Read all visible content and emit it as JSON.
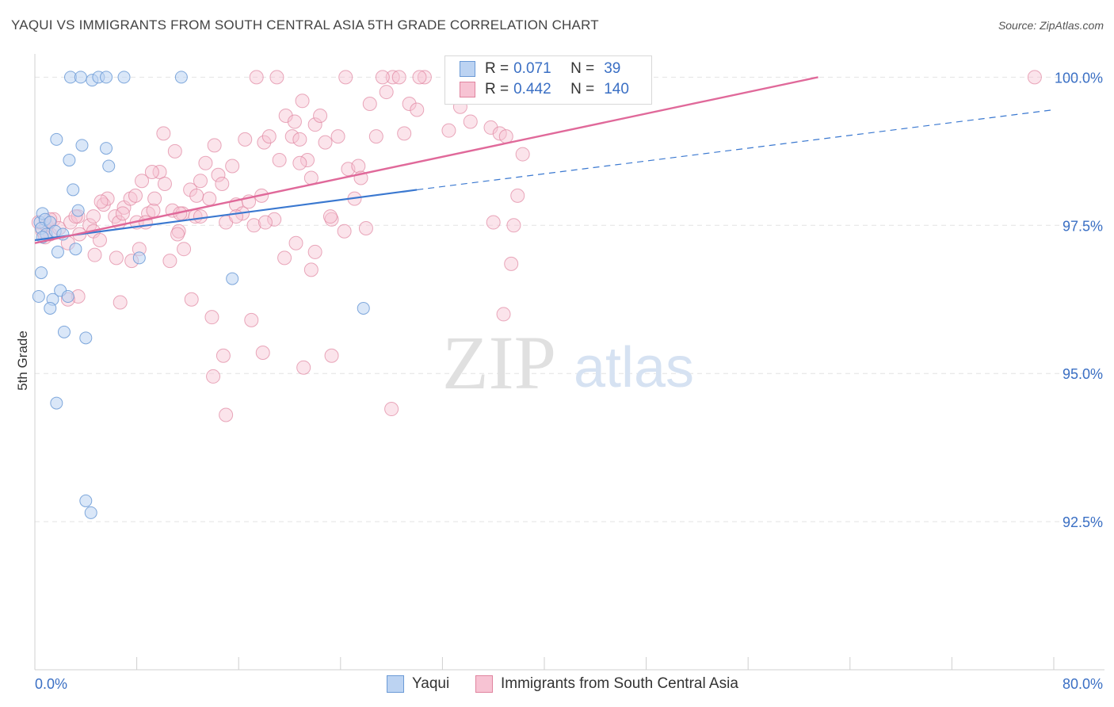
{
  "title": "YAQUI VS IMMIGRANTS FROM SOUTH CENTRAL ASIA 5TH GRADE CORRELATION CHART",
  "source": "Source: ZipAtlas.com",
  "watermark": {
    "zip": "ZIP",
    "atlas": "atlas"
  },
  "colors": {
    "blue": "#6b9ad6",
    "blue_fill": "#bcd3f2",
    "pink": "#e0849f",
    "pink_fill": "#f7c3d3",
    "blue_line": "#3a78d0",
    "pink_line": "#e0699a",
    "axis_label": "#3a6fc4"
  },
  "legend": {
    "rows": [
      {
        "r_label": "R =",
        "r_value": "0.071",
        "n_label": "N =",
        "n_value": "39"
      },
      {
        "r_label": "R =",
        "r_value": "0.442",
        "n_label": "N =",
        "n_value": "140"
      }
    ]
  },
  "bottom_legend": {
    "series1": "Yaqui",
    "series2": "Immigrants from South Central Asia"
  },
  "chart_data": {
    "type": "scatter",
    "title": "YAQUI VS IMMIGRANTS FROM SOUTH CENTRAL ASIA 5TH GRADE CORRELATION CHART",
    "xlabel": "",
    "ylabel": "5th Grade",
    "xlim": [
      0,
      80
    ],
    "ylim": [
      90.0,
      100.5
    ],
    "x_tick_labels": [
      "0.0%",
      "80.0%"
    ],
    "y_ticks": [
      92.5,
      95.0,
      97.5,
      100.0
    ],
    "y_tick_labels": [
      "92.5%",
      "95.0%",
      "97.5%",
      "100.0%"
    ],
    "series": [
      {
        "name": "Yaqui",
        "R": 0.071,
        "N": 39,
        "trend": {
          "x0": 0,
          "y0": 97.25,
          "x1": 30,
          "y1": 98.1,
          "dash_x1": 80,
          "dash_y1": 99.45
        },
        "points": [
          [
            0.4,
            97.55
          ],
          [
            0.6,
            97.7
          ],
          [
            0.8,
            97.6
          ],
          [
            0.5,
            97.45
          ],
          [
            0.9,
            97.35
          ],
          [
            1.2,
            97.55
          ],
          [
            1.6,
            97.4
          ],
          [
            2.2,
            97.35
          ],
          [
            0.5,
            96.7
          ],
          [
            0.3,
            96.3
          ],
          [
            1.4,
            96.25
          ],
          [
            1.2,
            96.1
          ],
          [
            2.0,
            96.4
          ],
          [
            2.6,
            96.3
          ],
          [
            3.2,
            97.1
          ],
          [
            1.8,
            97.05
          ],
          [
            1.7,
            98.95
          ],
          [
            2.7,
            98.6
          ],
          [
            3.7,
            98.85
          ],
          [
            5.6,
            98.8
          ],
          [
            5.8,
            98.5
          ],
          [
            3.0,
            98.1
          ],
          [
            3.4,
            97.75
          ],
          [
            2.8,
            100.0
          ],
          [
            3.6,
            100.0
          ],
          [
            4.5,
            99.95
          ],
          [
            5.0,
            100.0
          ],
          [
            5.6,
            100.0
          ],
          [
            7.0,
            100.0
          ],
          [
            11.5,
            100.0
          ],
          [
            2.3,
            95.7
          ],
          [
            4.0,
            95.6
          ],
          [
            1.7,
            94.5
          ],
          [
            4.0,
            92.85
          ],
          [
            4.4,
            92.65
          ],
          [
            8.2,
            96.95
          ],
          [
            15.5,
            96.6
          ],
          [
            25.8,
            96.1
          ],
          [
            0.6,
            97.3
          ]
        ]
      },
      {
        "name": "Immigrants from South Central Asia",
        "R": 0.442,
        "N": 140,
        "trend": {
          "x0": 0,
          "y0": 97.2,
          "x1": 61.5,
          "y1": 100.0
        },
        "points": [
          [
            0.3,
            97.55
          ],
          [
            0.6,
            97.4
          ],
          [
            0.9,
            97.5
          ],
          [
            1.2,
            97.35
          ],
          [
            1.5,
            97.6
          ],
          [
            0.8,
            97.3
          ],
          [
            1.9,
            97.45
          ],
          [
            2.6,
            97.2
          ],
          [
            2.8,
            97.55
          ],
          [
            3.4,
            97.65
          ],
          [
            4.3,
            97.5
          ],
          [
            4.6,
            97.4
          ],
          [
            5.1,
            97.25
          ],
          [
            5.4,
            97.85
          ],
          [
            5.7,
            97.95
          ],
          [
            6.3,
            97.65
          ],
          [
            6.6,
            97.55
          ],
          [
            7.0,
            97.8
          ],
          [
            7.5,
            97.95
          ],
          [
            8.0,
            97.55
          ],
          [
            8.4,
            98.25
          ],
          [
            8.9,
            97.7
          ],
          [
            9.3,
            97.75
          ],
          [
            9.8,
            98.4
          ],
          [
            10.2,
            98.2
          ],
          [
            10.8,
            97.75
          ],
          [
            11.3,
            97.4
          ],
          [
            11.6,
            97.7
          ],
          [
            12.2,
            98.1
          ],
          [
            12.6,
            97.65
          ],
          [
            13.0,
            98.25
          ],
          [
            13.4,
            98.55
          ],
          [
            13.7,
            97.95
          ],
          [
            14.4,
            98.35
          ],
          [
            15.0,
            97.55
          ],
          [
            15.5,
            98.5
          ],
          [
            15.8,
            97.85
          ],
          [
            16.3,
            97.7
          ],
          [
            16.8,
            97.9
          ],
          [
            17.2,
            97.5
          ],
          [
            17.8,
            98.0
          ],
          [
            18.0,
            98.9
          ],
          [
            18.4,
            99.0
          ],
          [
            18.8,
            97.6
          ],
          [
            19.2,
            98.6
          ],
          [
            19.7,
            99.35
          ],
          [
            20.2,
            99.0
          ],
          [
            20.4,
            99.25
          ],
          [
            20.8,
            98.95
          ],
          [
            21.4,
            98.6
          ],
          [
            21.7,
            98.3
          ],
          [
            22.0,
            99.2
          ],
          [
            22.4,
            99.35
          ],
          [
            22.8,
            98.9
          ],
          [
            23.3,
            97.6
          ],
          [
            23.8,
            99.0
          ],
          [
            24.3,
            97.4
          ],
          [
            24.6,
            98.45
          ],
          [
            25.1,
            97.95
          ],
          [
            25.4,
            98.5
          ],
          [
            25.6,
            98.3
          ],
          [
            26.3,
            99.55
          ],
          [
            26.8,
            99.0
          ],
          [
            27.6,
            99.75
          ],
          [
            28.1,
            100.0
          ],
          [
            29.0,
            99.05
          ],
          [
            29.4,
            99.55
          ],
          [
            30.0,
            99.45
          ],
          [
            30.6,
            100.0
          ],
          [
            32.5,
            99.1
          ],
          [
            33.4,
            99.5
          ],
          [
            34.2,
            99.25
          ],
          [
            34.6,
            100.0
          ],
          [
            35.8,
            99.15
          ],
          [
            36.5,
            99.05
          ],
          [
            37.0,
            99.0
          ],
          [
            38.3,
            98.7
          ],
          [
            40.2,
            100.0
          ],
          [
            37.6,
            97.5
          ],
          [
            37.9,
            98.0
          ],
          [
            17.4,
            100.0
          ],
          [
            19.0,
            100.0
          ],
          [
            24.4,
            100.0
          ],
          [
            27.3,
            100.0
          ],
          [
            28.6,
            100.0
          ],
          [
            30.2,
            100.0
          ],
          [
            36.1,
            100.0
          ],
          [
            35.4,
            100.0
          ],
          [
            78.5,
            100.0
          ],
          [
            14.7,
            98.2
          ],
          [
            9.2,
            98.4
          ],
          [
            11.0,
            98.75
          ],
          [
            10.1,
            99.05
          ],
          [
            14.1,
            98.85
          ],
          [
            21.0,
            99.6
          ],
          [
            16.5,
            98.95
          ],
          [
            3.2,
            97.65
          ],
          [
            4.7,
            97.0
          ],
          [
            6.4,
            96.95
          ],
          [
            7.6,
            96.9
          ],
          [
            8.2,
            97.1
          ],
          [
            10.6,
            96.9
          ],
          [
            11.7,
            97.1
          ],
          [
            11.2,
            97.35
          ],
          [
            19.6,
            96.95
          ],
          [
            20.5,
            97.2
          ],
          [
            22.0,
            97.05
          ],
          [
            13.0,
            97.65
          ],
          [
            9.4,
            97.95
          ],
          [
            5.2,
            97.9
          ],
          [
            3.5,
            97.35
          ],
          [
            4.6,
            97.65
          ],
          [
            6.7,
            96.2
          ],
          [
            12.3,
            96.25
          ],
          [
            13.9,
            95.95
          ],
          [
            17.0,
            95.9
          ],
          [
            14.8,
            95.3
          ],
          [
            17.9,
            95.35
          ],
          [
            21.1,
            95.1
          ],
          [
            23.3,
            95.3
          ],
          [
            14.0,
            94.95
          ],
          [
            15.0,
            94.3
          ],
          [
            28.0,
            94.4
          ],
          [
            36.8,
            96.0
          ],
          [
            37.4,
            96.85
          ],
          [
            36.0,
            97.55
          ],
          [
            21.7,
            96.75
          ],
          [
            3.4,
            96.3
          ],
          [
            2.6,
            96.25
          ],
          [
            1.2,
            97.6
          ],
          [
            26.0,
            97.45
          ],
          [
            23.2,
            97.65
          ],
          [
            7.9,
            98.0
          ],
          [
            15.8,
            97.65
          ],
          [
            18.1,
            97.55
          ],
          [
            6.9,
            97.7
          ],
          [
            8.7,
            97.55
          ],
          [
            11.4,
            97.7
          ],
          [
            12.7,
            98.0
          ],
          [
            20.8,
            98.55
          ]
        ]
      }
    ]
  }
}
